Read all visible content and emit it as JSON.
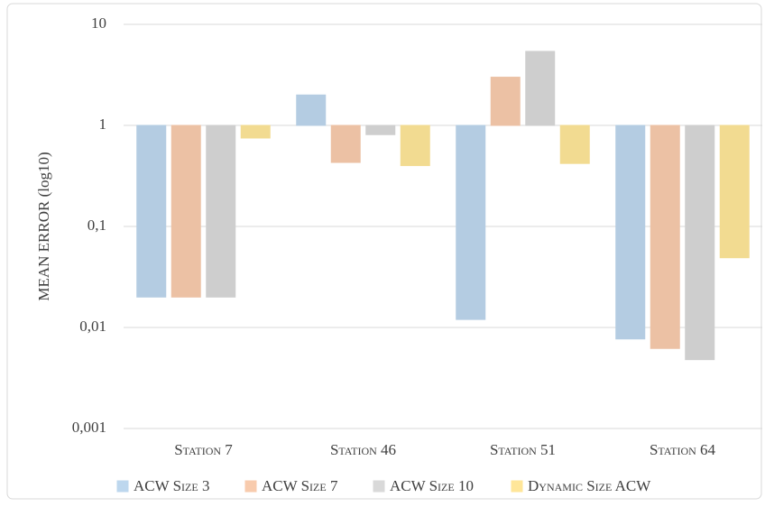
{
  "chart_data": {
    "type": "bar",
    "y_label": "MEAN ERROR (log10)",
    "log_scale": true,
    "grid": true,
    "legend": "bottom",
    "categories": [
      "Station 7",
      "Station 46",
      "Station 51",
      "Station 64"
    ],
    "series": [
      {
        "name": "ACW Size 3",
        "color": "#bdd7ee",
        "values": [
          0.02,
          2.0,
          0.012,
          0.0077
        ]
      },
      {
        "name": "ACW Size 7",
        "color": "#f8cbad",
        "values": [
          0.02,
          0.43,
          3.0,
          0.0062
        ]
      },
      {
        "name": "ACW Size 10",
        "color": "#d9d9d9",
        "values": [
          0.02,
          0.81,
          5.4,
          0.0048
        ]
      },
      {
        "name": "Dynamic Size ACW",
        "color": "#ffe699",
        "values": [
          0.75,
          0.4,
          0.42,
          0.049
        ]
      }
    ],
    "ylim": [
      0.001,
      10
    ],
    "yticks": [
      {
        "value": 0.001,
        "label": "0,001"
      },
      {
        "value": 0.01,
        "label": "0,01"
      },
      {
        "value": 0.1,
        "label": "0,1"
      },
      1,
      10
    ]
  }
}
